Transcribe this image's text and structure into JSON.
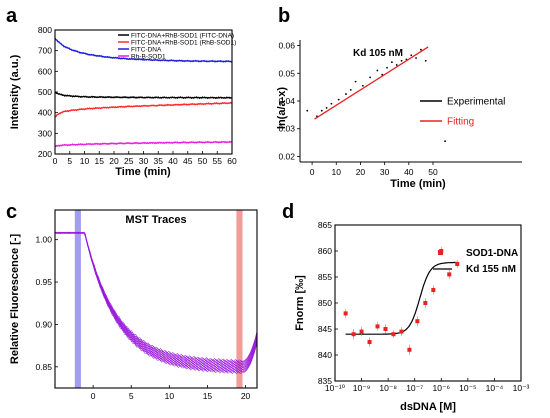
{
  "chart_data": [
    {
      "panel": "a",
      "type": "line",
      "xlabel": "Time (min)",
      "ylabel": "Intensity (a.u.)",
      "xlim": [
        0,
        60
      ],
      "ylim": [
        200,
        800
      ],
      "xticks": [
        0,
        5,
        10,
        15,
        20,
        25,
        30,
        35,
        40,
        45,
        50,
        55,
        60
      ],
      "yticks": [
        200,
        300,
        400,
        500,
        600,
        700,
        800
      ],
      "legend_position": "top-right",
      "series": [
        {
          "name": "FITC-DNA+RhB-SOD1 (FITC-DNA)",
          "color": "#000000",
          "x": [
            0,
            1,
            2,
            3,
            5,
            8,
            12,
            18,
            25,
            35,
            45,
            60
          ],
          "y": [
            500,
            492,
            487,
            484,
            481,
            478,
            476,
            475,
            474,
            473,
            473,
            472
          ]
        },
        {
          "name": "FITC-DNA+RhB-SOD1 (RhB-SOD1)",
          "color": "#ff2a2a",
          "x": [
            0,
            1,
            2,
            3,
            5,
            8,
            12,
            18,
            25,
            35,
            45,
            60
          ],
          "y": [
            378,
            392,
            400,
            405,
            410,
            415,
            420,
            425,
            430,
            435,
            440,
            447
          ]
        },
        {
          "name": "FITC-DNA",
          "color": "#1e1edc",
          "x": [
            0,
            1,
            2,
            3,
            5,
            8,
            12,
            18,
            25,
            35,
            45,
            60
          ],
          "y": [
            760,
            745,
            732,
            722,
            708,
            693,
            680,
            668,
            660,
            654,
            650,
            648
          ]
        },
        {
          "name": "Rh-B-SOD1",
          "color": "#e81ee0",
          "x": [
            0,
            1,
            2,
            3,
            5,
            8,
            12,
            18,
            25,
            35,
            45,
            60
          ],
          "y": [
            236,
            240,
            242,
            243,
            244,
            246,
            248,
            250,
            252,
            254,
            256,
            258
          ]
        }
      ]
    },
    {
      "panel": "b",
      "type": "scatter",
      "xlabel": "Time (min)",
      "ylabel": "ln(a/a-x)",
      "annotation": "Kd 105 nM",
      "xlim": [
        -5,
        62
      ],
      "ylim": [
        0.018,
        0.062
      ],
      "xticks": [
        0,
        10,
        20,
        30,
        40,
        50
      ],
      "yticks": [
        0.02,
        0.03,
        0.04,
        0.05,
        0.06
      ],
      "ytick_labels": [
        "0.02",
        "0.03",
        "0.04",
        "0.05",
        "0.06"
      ],
      "legend_position": "center-right",
      "series": [
        {
          "name": "Experimental",
          "color": "#000000",
          "x": [
            -2,
            2,
            4,
            6,
            8,
            11,
            14,
            16,
            18,
            21,
            24,
            27,
            29,
            31,
            33,
            35,
            37,
            39,
            41,
            43,
            45,
            47,
            55
          ],
          "y": [
            0.0365,
            0.0345,
            0.0365,
            0.0375,
            0.039,
            0.0405,
            0.0425,
            0.044,
            0.047,
            0.0455,
            0.0485,
            0.051,
            0.0495,
            0.052,
            0.054,
            0.053,
            0.0545,
            0.055,
            0.0565,
            0.0555,
            0.0585,
            0.0545,
            0.0255
          ]
        },
        {
          "name": "Fitting",
          "color": "#e82020",
          "x": [
            1,
            48
          ],
          "y": [
            0.0335,
            0.0595
          ]
        }
      ]
    },
    {
      "panel": "c",
      "type": "line",
      "title": "MST Traces",
      "xlabel": "",
      "ylabel": "Relative Fluorescence [-]",
      "xlim": [
        -5,
        21.5
      ],
      "ylim": [
        0.825,
        1.035
      ],
      "xticks": [
        0,
        5,
        10,
        15,
        20
      ],
      "yticks": [
        0.85,
        0.9,
        0.95,
        1.0
      ],
      "ytick_labels": [
        "0.85",
        "0.90",
        "0.95",
        "1.00"
      ],
      "cold_region": [
        -2.4,
        -1.6
      ],
      "hot_region": [
        18.8,
        19.6
      ],
      "trace_color": "#9a1adc",
      "trace_count": 16,
      "trace_start": 1.008,
      "trace_end_min": 0.843,
      "trace_end_max": 0.857
    },
    {
      "panel": "d",
      "type": "scatter",
      "xlabel": "dsDNA [M]",
      "ylabel": "Fnorm [‰]",
      "xscale": "log",
      "xlim": [
        1e-10,
        0.001
      ],
      "ylim": [
        835,
        865
      ],
      "xticks": [
        "10⁻¹⁰",
        "10⁻⁹",
        "10⁻⁸",
        "10⁻⁷",
        "10⁻⁶",
        "10⁻⁵",
        "10⁻⁴",
        "10⁻³"
      ],
      "yticks": [
        835,
        840,
        845,
        850,
        855,
        860,
        865
      ],
      "legend_position": "top-right",
      "series": [
        {
          "name": "SOD1-DNA",
          "color": "#ee2020",
          "log10_x": [
            -9.6,
            -9.3,
            -9.0,
            -8.7,
            -8.4,
            -8.1,
            -7.8,
            -7.5,
            -7.2,
            -6.9,
            -6.6,
            -6.3,
            -6.0,
            -5.7,
            -5.4
          ],
          "y": [
            848.0,
            844.0,
            844.5,
            842.5,
            845.5,
            845.0,
            844.0,
            844.5,
            841.0,
            846.5,
            850.0,
            852.5,
            860.0,
            855.5,
            857.5
          ],
          "err": [
            0.8,
            1.0,
            0.9,
            0.9,
            0.8,
            0.9,
            0.7,
            0.8,
            1.0,
            0.9,
            0.9,
            0.9,
            0.8,
            0.9,
            0.8
          ]
        },
        {
          "name": "Kd 155 nM",
          "color": "#000000",
          "fit": {
            "bottom": 844.0,
            "top": 857.8,
            "log10_kd": -6.81,
            "hill": 1.4,
            "x_from": -9.6,
            "x_to": -5.4
          }
        }
      ]
    }
  ]
}
